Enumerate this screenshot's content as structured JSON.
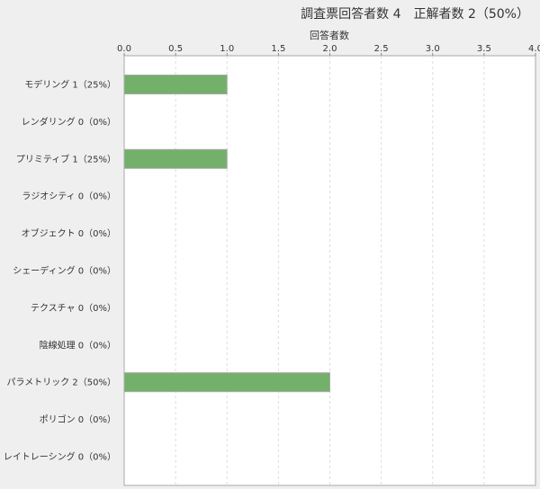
{
  "chart_data": {
    "type": "bar",
    "orientation": "horizontal",
    "title": "調査票回答者数 4　正解者数 2（50%）",
    "xlabel": "回答者数",
    "ylabel": "",
    "xlim": [
      0,
      4.0
    ],
    "xticks": [
      "0.0",
      "0.5",
      "1.0",
      "1.5",
      "2.0",
      "2.5",
      "3.0",
      "3.5",
      "4.0"
    ],
    "grid": true,
    "categories": [
      "モデリング 1（25%）",
      "レンダリング 0（0%）",
      "プリミティブ 1（25%）",
      "ラジオシティ 0（0%）",
      "オブジェクト 0（0%）",
      "シェーディング 0（0%）",
      "テクスチャ 0（0%）",
      "陰線処理 0（0%）",
      "パラメトリック 2（50%）",
      "ポリゴン 0（0%）",
      "レイトレーシング 0（0%）"
    ],
    "values": [
      1,
      0,
      1,
      0,
      0,
      0,
      0,
      0,
      2,
      0,
      0
    ],
    "bar_color": "#73b06a"
  }
}
